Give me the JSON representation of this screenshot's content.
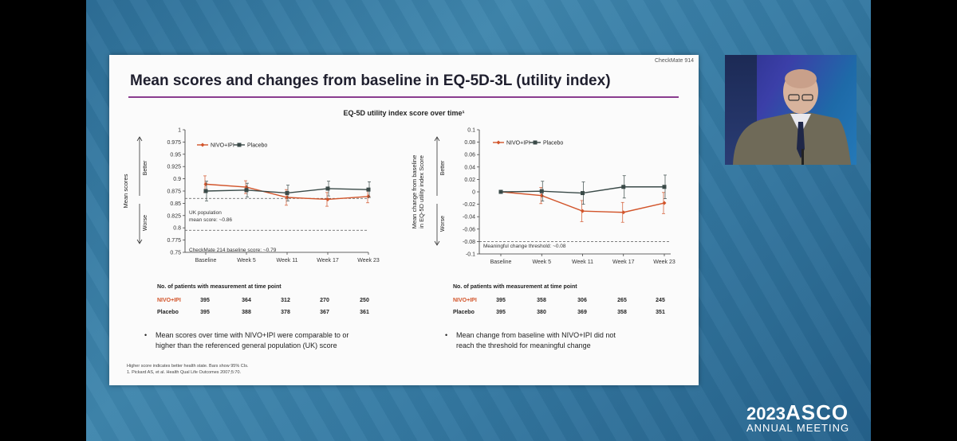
{
  "slide": {
    "study_tag": "CheckMate 914",
    "title": "Mean scores and changes from baseline in EQ-5D-3L (utility index)",
    "subtitle": "EQ-5D utility index score over time¹"
  },
  "colors": {
    "nivo": "#d2542a",
    "placebo": "#3a4a48",
    "accent_rule": "#8a3c8f"
  },
  "chart_data": [
    {
      "type": "line",
      "categories": [
        "Baseline",
        "Week 5",
        "Week 11",
        "Week 17",
        "Week 23"
      ],
      "ylabel": "Mean scores",
      "ylim": [
        0.75,
        1.0
      ],
      "yticks": [
        "1",
        "0.975",
        "0.95",
        "0.925",
        "0.9",
        "0.875",
        "0.85",
        "0.825",
        "0.8",
        "0.775",
        "0.75"
      ],
      "direction_labels": {
        "better": "Better",
        "worse": "Worse"
      },
      "legend": {
        "placement": "top-left",
        "items": [
          "NIVO+IPI",
          "Placebo"
        ]
      },
      "series": [
        {
          "name": "NIVO+IPI",
          "values": [
            0.889,
            0.883,
            0.862,
            0.858,
            0.864
          ],
          "errors": [
            0.017,
            0.013,
            0.016,
            0.014,
            0.013
          ]
        },
        {
          "name": "Placebo",
          "values": [
            0.875,
            0.877,
            0.871,
            0.88,
            0.878
          ],
          "errors": [
            0.02,
            0.014,
            0.016,
            0.015,
            0.016
          ]
        }
      ],
      "reference_lines": [
        {
          "value": 0.86,
          "label_lines": [
            "UK population",
            "mean score: ~0.86"
          ]
        },
        {
          "value": 0.795,
          "label_lines": [
            "CheckMate 214 baseline score: ~0.79"
          ]
        }
      ]
    },
    {
      "type": "line",
      "categories": [
        "Baseline",
        "Week 5",
        "Week 11",
        "Week 17",
        "Week 23"
      ],
      "ylabel_lines": [
        "Mean change from baseline",
        "in EQ-5D utility index Score"
      ],
      "ylim": [
        -0.1,
        0.1
      ],
      "yticks": [
        "0.1",
        "0.08",
        "0.06",
        "0.04",
        "0.02",
        "0",
        "-0.02",
        "-0.04",
        "-0.06",
        "-0.08",
        "-0.1"
      ],
      "direction_labels": {
        "better": "Better",
        "worse": "Worse"
      },
      "legend": {
        "placement": "top-left",
        "items": [
          "NIVO+IPI",
          "Placebo"
        ]
      },
      "series": [
        {
          "name": "NIVO+IPI",
          "values": [
            0.0,
            -0.006,
            -0.031,
            -0.033,
            -0.018
          ],
          "errors": [
            0.0,
            0.013,
            0.017,
            0.016,
            0.017
          ]
        },
        {
          "name": "Placebo",
          "values": [
            0.0,
            0.001,
            -0.002,
            0.008,
            0.008
          ],
          "errors": [
            0.0,
            0.016,
            0.018,
            0.018,
            0.019
          ]
        }
      ],
      "reference_lines": [
        {
          "value": -0.08,
          "label_lines": [
            "Meaningful change threshold: ~0.08"
          ]
        }
      ]
    }
  ],
  "patients_left": {
    "header": "No. of patients with measurement at time point",
    "nivo_label": "NIVO+IPI",
    "placebo_label": "Placebo",
    "nivo": [
      "395",
      "364",
      "312",
      "270",
      "250"
    ],
    "placebo": [
      "395",
      "388",
      "378",
      "367",
      "361"
    ]
  },
  "patients_right": {
    "header": "No. of patients with measurement at time point",
    "nivo_label": "NIVO+IPI",
    "placebo_label": "Placebo",
    "nivo": [
      "395",
      "358",
      "306",
      "265",
      "245"
    ],
    "placebo": [
      "395",
      "380",
      "369",
      "358",
      "351"
    ]
  },
  "bullets": {
    "left": [
      "Mean scores over time with NIVO+IPI were comparable to or",
      "higher than the referenced general population (UK) score"
    ],
    "right": [
      "Mean change from baseline with NIVO+IPI did not",
      "reach the threshold for meaningful change"
    ]
  },
  "footnote": {
    "line1": "Higher score indicates better health state. Bars show 95% CIs.",
    "line2": "1. Pickard AS, et al. Health Qual Life Outcomes 2007;5:70."
  },
  "logo": {
    "year": "2023",
    "name": "ASCO",
    "meeting": "ANNUAL MEETING"
  }
}
